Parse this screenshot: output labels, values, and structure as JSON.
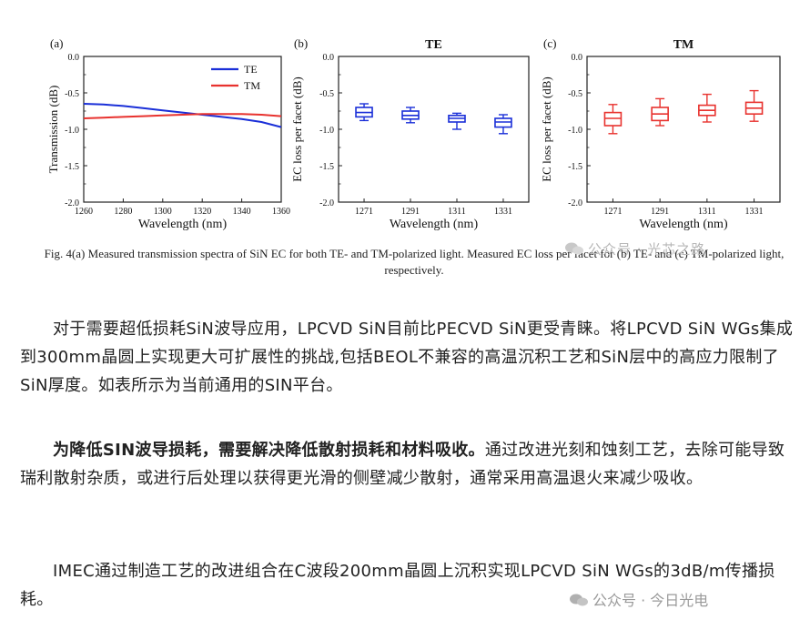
{
  "chart_data": [
    {
      "panel": "(a)",
      "type": "line",
      "title": "",
      "xlabel": "Wavelength (nm)",
      "ylabel": "Transmission (dB)",
      "xlim": [
        1260,
        1360
      ],
      "ylim": [
        -2.0,
        0.0
      ],
      "xticks": [
        1260,
        1280,
        1300,
        1320,
        1340,
        1360
      ],
      "yticks": [
        "0.0",
        "-0.5",
        "-1.0",
        "-1.5",
        "-2.0"
      ],
      "legend_position": "top-right",
      "series": [
        {
          "name": "TE",
          "color": "#1a2fd8",
          "x": [
            1260,
            1270,
            1280,
            1290,
            1300,
            1310,
            1320,
            1330,
            1340,
            1350,
            1360
          ],
          "y": [
            -0.65,
            -0.66,
            -0.68,
            -0.71,
            -0.74,
            -0.77,
            -0.8,
            -0.83,
            -0.86,
            -0.9,
            -0.97
          ]
        },
        {
          "name": "TM",
          "color": "#e8322e",
          "x": [
            1260,
            1270,
            1280,
            1290,
            1300,
            1310,
            1320,
            1330,
            1340,
            1350,
            1360
          ],
          "y": [
            -0.85,
            -0.84,
            -0.83,
            -0.82,
            -0.81,
            -0.8,
            -0.79,
            -0.79,
            -0.79,
            -0.8,
            -0.82
          ]
        }
      ]
    },
    {
      "panel": "(b)",
      "type": "box",
      "title": "TE",
      "xlabel": "Wavelength (nm)",
      "ylabel": "EC loss per facet (dB)",
      "ylim": [
        -2.0,
        0.0
      ],
      "yticks": [
        "0.0",
        "-0.5",
        "-1.0",
        "-1.5",
        "-2.0"
      ],
      "categories": [
        "1271",
        "1291",
        "1311",
        "1331"
      ],
      "color": "#1a2fd8",
      "boxes": [
        {
          "whisker_high": -0.65,
          "q3": -0.7,
          "median": -0.77,
          "q1": -0.83,
          "whisker_low": -0.88
        },
        {
          "whisker_high": -0.7,
          "q3": -0.75,
          "median": -0.81,
          "q1": -0.86,
          "whisker_low": -0.91
        },
        {
          "whisker_high": -0.78,
          "q3": -0.81,
          "median": -0.85,
          "q1": -0.9,
          "whisker_low": -1.0
        },
        {
          "whisker_high": -0.8,
          "q3": -0.85,
          "median": -0.9,
          "q1": -0.97,
          "whisker_low": -1.06
        }
      ]
    },
    {
      "panel": "(c)",
      "type": "box",
      "title": "TM",
      "xlabel": "Wavelength (nm)",
      "ylabel": "EC loss per facet (dB)",
      "ylim": [
        -2.0,
        0.0
      ],
      "yticks": [
        "0.0",
        "-0.5",
        "-1.0",
        "-1.5",
        "-2.0"
      ],
      "categories": [
        "1271",
        "1291",
        "1311",
        "1331"
      ],
      "color": "#e8322e",
      "boxes": [
        {
          "whisker_high": -0.66,
          "q3": -0.77,
          "median": -0.85,
          "q1": -0.95,
          "whisker_low": -1.06
        },
        {
          "whisker_high": -0.58,
          "q3": -0.7,
          "median": -0.79,
          "q1": -0.88,
          "whisker_low": -0.95
        },
        {
          "whisker_high": -0.52,
          "q3": -0.67,
          "median": -0.74,
          "q1": -0.81,
          "whisker_low": -0.9
        },
        {
          "whisker_high": -0.47,
          "q3": -0.63,
          "median": -0.71,
          "q1": -0.79,
          "whisker_low": -0.89
        }
      ]
    }
  ],
  "caption": "Fig. 4(a) Measured transmission spectra of SiN EC for both TE- and TM-polarized light. Measured EC loss per facet for (b) TE- and (c) TM-polarized light, respectively.",
  "watermark_top": "公众号 · 光芯之路",
  "watermark_bottom": "公众号 · 今日光电",
  "article": {
    "p1": "对于需要超低损耗SiN波导应用，LPCVD SiN目前比PECVD SiN更受青睐。将LPCVD SiN WGs集成到300mm晶圆上实现更大可扩展性的挑战,包括BEOL不兼容的高温沉积工艺和SiN层中的高应力限制了SiN厚度。如表所示为当前通用的SIN平台。",
    "p2_bold": "为降低SIN波导损耗，需要解决降低散射损耗和材料吸收。",
    "p2_rest": "通过改进光刻和蚀刻工艺，去除可能导致瑞利散射杂质，或进行后处理以获得更光滑的侧壁减少散射，通常采用高温退火来减少吸收。",
    "p3": "IMEC通过制造工艺的改进组合在C波段200mm晶圆上沉积实现LPCVD SiN WGs的3dB/m传播损耗。"
  }
}
